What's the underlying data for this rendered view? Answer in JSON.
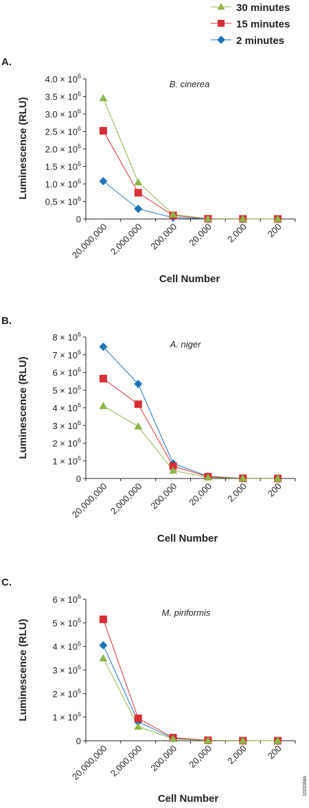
{
  "legend": [
    {
      "label": "30 minutes",
      "color": "#8db849",
      "marker": "triangle"
    },
    {
      "label": "15 minutes",
      "color": "#d92e35",
      "marker": "square"
    },
    {
      "label": "2 minutes",
      "color": "#1b75bb",
      "marker": "diamond"
    }
  ],
  "figure_code": "10203MA",
  "chart_data": [
    {
      "type": "line",
      "panel": "A.",
      "title": "B. cinerea",
      "xlabel": "Cell Number",
      "ylabel": "Luminescence (RLU)",
      "categories": [
        "20,000,000",
        "2,000,000",
        "200,000",
        "20,000",
        "2,000",
        "200"
      ],
      "ylim": [
        0,
        4000000
      ],
      "yticks": [
        {
          "value": 0,
          "label": "0"
        },
        {
          "value": 500000,
          "label": "0.5 × 10",
          "exp": "6"
        },
        {
          "value": 1000000,
          "label": "1.0 × 10",
          "exp": "6"
        },
        {
          "value": 1500000,
          "label": "1.5 × 10",
          "exp": "6"
        },
        {
          "value": 2000000,
          "label": "2.0 × 10",
          "exp": "6"
        },
        {
          "value": 2500000,
          "label": "2.5 × 10",
          "exp": "6"
        },
        {
          "value": 3000000,
          "label": "3.0 × 10",
          "exp": "6"
        },
        {
          "value": 3500000,
          "label": "3.5 × 10",
          "exp": "6"
        },
        {
          "value": 4000000,
          "label": "4.0 × 10",
          "exp": "6"
        }
      ],
      "series": [
        {
          "name": "30 minutes",
          "values": [
            3450000,
            1050000,
            130000,
            10000,
            2000,
            1000
          ]
        },
        {
          "name": "15 minutes",
          "values": [
            2520000,
            750000,
            100000,
            8000,
            2000,
            1000
          ]
        },
        {
          "name": "2 minutes",
          "values": [
            1080000,
            290000,
            40000,
            5000,
            1000,
            1000
          ]
        }
      ]
    },
    {
      "type": "line",
      "panel": "B.",
      "title": "A. niger",
      "xlabel": "Cell Number",
      "ylabel": "Luminescence (RLU)",
      "categories": [
        "20,000,000",
        "2,000,000",
        "200,000",
        "20,000",
        "2,000",
        "200"
      ],
      "ylim": [
        0,
        8000000
      ],
      "yticks": [
        {
          "value": 0,
          "label": "0"
        },
        {
          "value": 1000000,
          "label": "1 × 10",
          "exp": "6"
        },
        {
          "value": 2000000,
          "label": "2 × 10",
          "exp": "6"
        },
        {
          "value": 3000000,
          "label": "3 × 10",
          "exp": "6"
        },
        {
          "value": 4000000,
          "label": "4 × 10",
          "exp": "6"
        },
        {
          "value": 5000000,
          "label": "5 × 10",
          "exp": "6"
        },
        {
          "value": 6000000,
          "label": "6 × 10",
          "exp": "6"
        },
        {
          "value": 7000000,
          "label": "7 × 10",
          "exp": "6"
        },
        {
          "value": 8000000,
          "label": "8 × 10",
          "exp": "6"
        }
      ],
      "series": [
        {
          "name": "30 minutes",
          "values": [
            4100000,
            2950000,
            450000,
            60000,
            8000,
            2000
          ]
        },
        {
          "name": "15 minutes",
          "values": [
            5650000,
            4200000,
            700000,
            100000,
            12000,
            2000
          ]
        },
        {
          "name": "2 minutes",
          "values": [
            7450000,
            5350000,
            850000,
            120000,
            15000,
            3000
          ]
        }
      ]
    },
    {
      "type": "line",
      "panel": "C.",
      "title": "M. piriformis",
      "xlabel": "Cell Number",
      "ylabel": "Luminescence (RLU)",
      "categories": [
        "20,000,000",
        "2,000,000",
        "200,000",
        "20,000",
        "2,000",
        "200"
      ],
      "ylim": [
        0,
        6000000
      ],
      "yticks": [
        {
          "value": 0,
          "label": "0"
        },
        {
          "value": 1000000,
          "label": "1 × 10",
          "exp": "6"
        },
        {
          "value": 2000000,
          "label": "2 × 10",
          "exp": "6"
        },
        {
          "value": 3000000,
          "label": "3 × 10",
          "exp": "6"
        },
        {
          "value": 4000000,
          "label": "4 × 10",
          "exp": "6"
        },
        {
          "value": 5000000,
          "label": "5 × 10",
          "exp": "6"
        },
        {
          "value": 6000000,
          "label": "6 × 10",
          "exp": "6"
        }
      ],
      "series": [
        {
          "name": "30 minutes",
          "values": [
            3500000,
            600000,
            80000,
            10000,
            2000,
            1000
          ]
        },
        {
          "name": "15 minutes",
          "values": [
            5150000,
            950000,
            130000,
            20000,
            3000,
            1000
          ]
        },
        {
          "name": "2 minutes",
          "values": [
            4050000,
            800000,
            100000,
            15000,
            2000,
            1000
          ]
        }
      ]
    }
  ]
}
